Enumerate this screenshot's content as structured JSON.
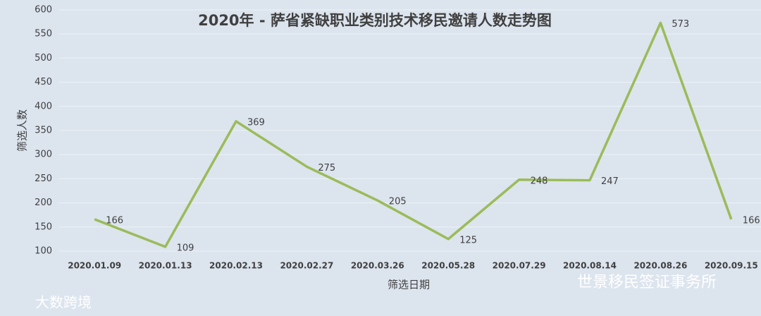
{
  "chart_data": {
    "type": "line",
    "title": "2020年 - 萨省紧缺职业类别技术移民邀请人数走势图",
    "x_label": "筛选日期",
    "y_label": "筛选人数",
    "categories": [
      "2020.01.09",
      "2020.01.13",
      "2020.02.13",
      "2020.02.27",
      "2020.03.26",
      "2020.05.28",
      "2020.07.29",
      "2020.08.14",
      "2020.08.26",
      "2020.09.15"
    ],
    "values": [
      166,
      109,
      369,
      275,
      205,
      125,
      248,
      247,
      573,
      166
    ],
    "color": "#9bbb59",
    "ylim": [
      100,
      600
    ],
    "yticks": [
      100,
      150,
      200,
      250,
      300,
      350,
      400,
      450,
      500,
      550,
      600
    ],
    "grid": true,
    "annotations": [
      "世景移民签证事务所",
      "大数跨境"
    ]
  }
}
